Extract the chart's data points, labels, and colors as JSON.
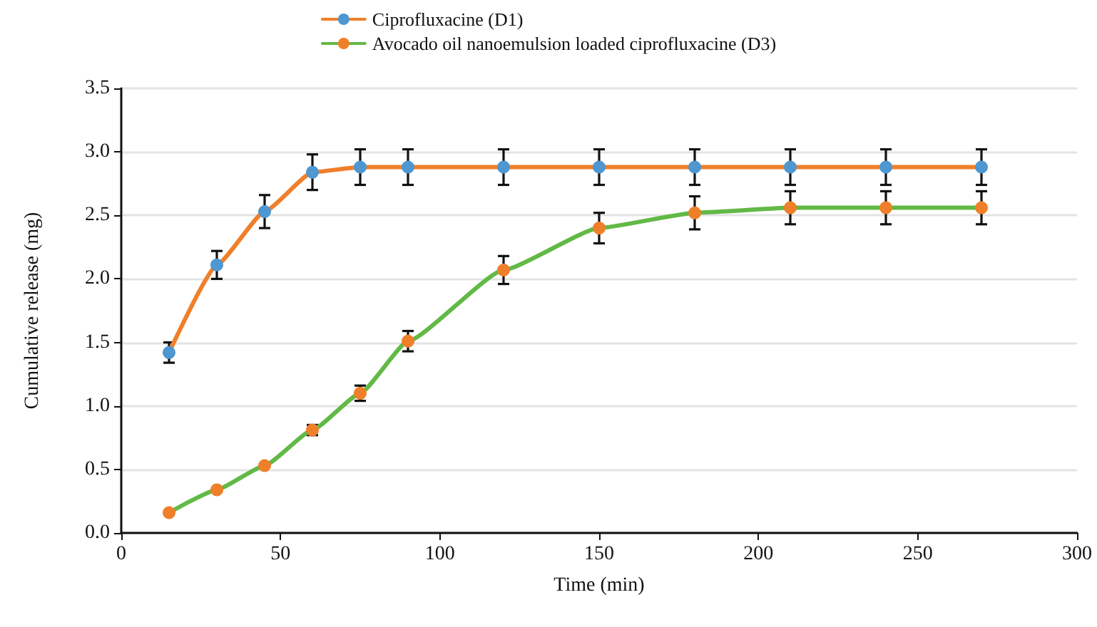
{
  "chart_data": {
    "type": "line",
    "xlabel": "Time (min)",
    "ylabel": "Cumulative release (mg)",
    "x": [
      15,
      30,
      45,
      60,
      75,
      90,
      120,
      150,
      180,
      210,
      240,
      270
    ],
    "series": [
      {
        "name": "Ciprofluxacine (D1)",
        "color": "#f07f2a",
        "colors": [
          "#4e97d1",
          "#4e97d1",
          "#4e97d1",
          "#4e97d1",
          "#4e97d1",
          "#4e97d1",
          "#4e97d1",
          "#4e97d1",
          "#4e97d1",
          "#4e97d1",
          "#4e97d1",
          "#4e97d1"
        ],
        "values": [
          1.42,
          2.11,
          2.53,
          2.84,
          2.88,
          2.88,
          2.88,
          2.88,
          2.88,
          2.88,
          2.88,
          2.88
        ],
        "errors": [
          0.08,
          0.11,
          0.13,
          0.14,
          0.14,
          0.14,
          0.14,
          0.14,
          0.14,
          0.14,
          0.14,
          0.14
        ]
      },
      {
        "name": "Avocado oil nanoemulsion loaded ciprofluxacine (D3)",
        "color": "#62b946",
        "colors": [
          "#f07f2a",
          "#f07f2a",
          "#f07f2a",
          "#f07f2a",
          "#f07f2a",
          "#f07f2a",
          "#f07f2a",
          "#f07f2a",
          "#f07f2a",
          "#f07f2a",
          "#f07f2a",
          "#f07f2a"
        ],
        "values": [
          0.16,
          0.34,
          0.53,
          0.81,
          1.1,
          1.51,
          2.07,
          2.4,
          2.52,
          2.56,
          2.56,
          2.56
        ],
        "errors": [
          null,
          null,
          null,
          0.04,
          0.06,
          0.08,
          0.11,
          0.12,
          0.13,
          0.13,
          0.13,
          0.13
        ]
      }
    ],
    "xlim": [
      0,
      300
    ],
    "xticks": [
      0,
      50,
      100,
      150,
      200,
      250,
      300
    ],
    "ylim": [
      0,
      3.5
    ],
    "yticks": [
      {
        "value": 0,
        "label": "0.0"
      },
      0.5,
      {
        "value": 1,
        "label": "1.0"
      },
      1.5,
      {
        "value": 2,
        "label": "2.0"
      },
      2.5,
      {
        "value": 3,
        "label": "3.0"
      },
      3.5
    ],
    "grid": "y",
    "legend": "top",
    "marker": "circle",
    "line_style": "solid"
  }
}
